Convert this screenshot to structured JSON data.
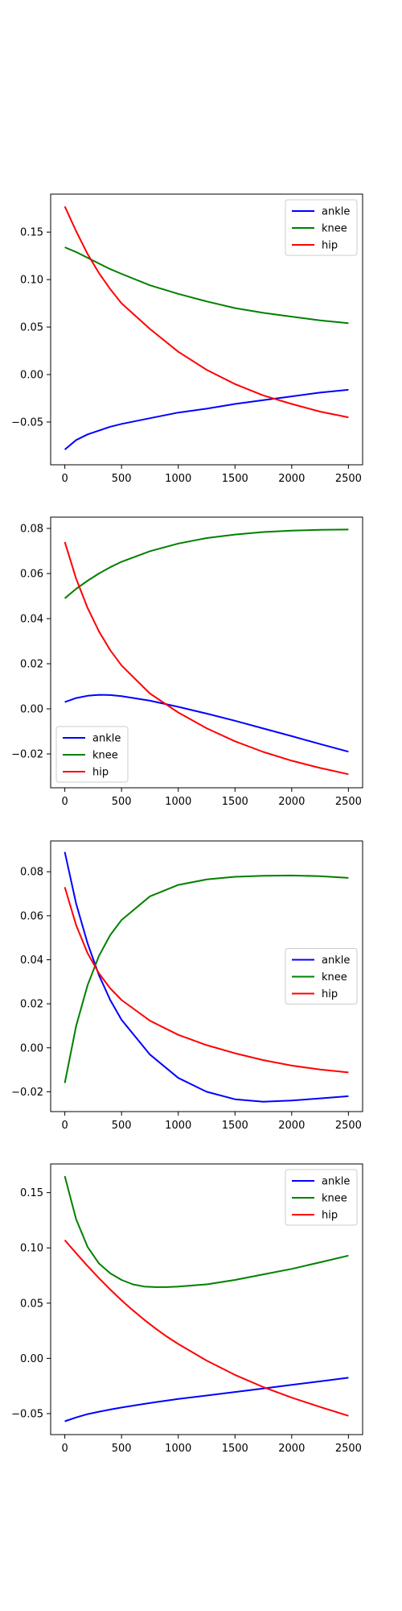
{
  "chart_data": [
    {
      "type": "line",
      "xlim": [
        -125,
        2625
      ],
      "ylim": [
        -0.095,
        0.19
      ],
      "x_ticks": [
        0,
        500,
        1000,
        1500,
        2000,
        2500
      ],
      "y_ticks": [
        -0.05,
        0.0,
        0.05,
        0.1,
        0.15
      ],
      "y_tick_labels": [
        "−0.05",
        "0.00",
        "0.05",
        "0.10",
        "0.15"
      ],
      "legend": "upper right",
      "x": [
        0,
        100,
        200,
        300,
        400,
        500,
        750,
        1000,
        1250,
        1500,
        1750,
        2000,
        2250,
        2500
      ],
      "series": [
        {
          "name": "ankle",
          "color": "#0000ff",
          "values": [
            -0.079,
            -0.069,
            -0.063,
            -0.059,
            -0.055,
            -0.052,
            -0.046,
            -0.04,
            -0.036,
            -0.031,
            -0.027,
            -0.023,
            -0.019,
            -0.016
          ]
        },
        {
          "name": "knee",
          "color": "#008000",
          "values": [
            0.134,
            0.129,
            0.123,
            0.117,
            0.111,
            0.106,
            0.094,
            0.085,
            0.077,
            0.07,
            0.065,
            0.061,
            0.057,
            0.054
          ]
        },
        {
          "name": "hip",
          "color": "#ff0000",
          "values": [
            0.177,
            0.151,
            0.127,
            0.107,
            0.09,
            0.075,
            0.048,
            0.024,
            0.005,
            -0.01,
            -0.022,
            -0.031,
            -0.039,
            -0.045
          ]
        }
      ]
    },
    {
      "type": "line",
      "xlim": [
        -125,
        2625
      ],
      "ylim": [
        -0.035,
        0.085
      ],
      "x_ticks": [
        0,
        500,
        1000,
        1500,
        2000,
        2500
      ],
      "y_ticks": [
        -0.02,
        0.0,
        0.02,
        0.04,
        0.06,
        0.08
      ],
      "y_tick_labels": [
        "−0.02",
        "0.00",
        "0.02",
        "0.04",
        "0.06",
        "0.08"
      ],
      "legend": "lower left",
      "x": [
        0,
        100,
        200,
        300,
        400,
        500,
        750,
        1000,
        1250,
        1500,
        1750,
        2000,
        2250,
        2500
      ],
      "series": [
        {
          "name": "ankle",
          "color": "#0000ff",
          "values": [
            0.003,
            0.0048,
            0.0058,
            0.0062,
            0.0061,
            0.0056,
            0.0036,
            0.0009,
            -0.0021,
            -0.0053,
            -0.0087,
            -0.0121,
            -0.0156,
            -0.019
          ]
        },
        {
          "name": "knee",
          "color": "#008000",
          "values": [
            0.049,
            0.0532,
            0.0568,
            0.06,
            0.0628,
            0.0652,
            0.0699,
            0.0733,
            0.0757,
            0.0773,
            0.0784,
            0.079,
            0.0794,
            0.0795
          ]
        },
        {
          "name": "hip",
          "color": "#ff0000",
          "values": [
            0.074,
            0.0577,
            0.0448,
            0.0344,
            0.026,
            0.0192,
            0.0068,
            -0.0016,
            -0.0086,
            -0.0144,
            -0.0191,
            -0.023,
            -0.0262,
            -0.029
          ]
        }
      ]
    },
    {
      "type": "line",
      "xlim": [
        -125,
        2625
      ],
      "ylim": [
        -0.029,
        0.094
      ],
      "x_ticks": [
        0,
        500,
        1000,
        1500,
        2000,
        2500
      ],
      "y_ticks": [
        -0.02,
        0.0,
        0.02,
        0.04,
        0.06,
        0.08
      ],
      "y_tick_labels": [
        "−0.02",
        "0.00",
        "0.02",
        "0.04",
        "0.06",
        "0.08"
      ],
      "legend": "center right",
      "x": [
        0,
        100,
        200,
        300,
        400,
        500,
        750,
        1000,
        1250,
        1500,
        1750,
        2000,
        2250,
        2500
      ],
      "series": [
        {
          "name": "ankle",
          "color": "#0000ff",
          "values": [
            0.089,
            0.0655,
            0.0475,
            0.0331,
            0.0217,
            0.0127,
            -0.0031,
            -0.0137,
            -0.02,
            -0.0234,
            -0.0245,
            -0.024,
            -0.023,
            -0.022
          ]
        },
        {
          "name": "knee",
          "color": "#008000",
          "values": [
            -0.016,
            0.0099,
            0.0284,
            0.0417,
            0.0512,
            0.0581,
            0.0688,
            0.074,
            0.0765,
            0.0777,
            0.0782,
            0.0783,
            0.078,
            0.0772
          ]
        },
        {
          "name": "hip",
          "color": "#ff0000",
          "values": [
            0.073,
            0.0557,
            0.043,
            0.0339,
            0.027,
            0.0217,
            0.0123,
            0.0059,
            0.0012,
            -0.0025,
            -0.0056,
            -0.0081,
            -0.0099,
            -0.0112
          ]
        }
      ]
    },
    {
      "type": "line",
      "xlim": [
        -125,
        2625
      ],
      "ylim": [
        -0.069,
        0.176
      ],
      "x_ticks": [
        0,
        500,
        1000,
        1500,
        2000,
        2500
      ],
      "y_ticks": [
        -0.05,
        0.0,
        0.05,
        0.1,
        0.15
      ],
      "y_tick_labels": [
        "−0.05",
        "0.00",
        "0.05",
        "0.10",
        "0.15"
      ],
      "legend": "upper right",
      "x": [
        0,
        100,
        200,
        300,
        400,
        500,
        600,
        700,
        800,
        900,
        1000,
        1250,
        1500,
        1750,
        2000,
        2250,
        2500
      ],
      "series": [
        {
          "name": "ankle",
          "color": "#0000ff",
          "values": [
            -0.057,
            -0.0535,
            -0.0505,
            -0.0483,
            -0.0463,
            -0.0445,
            -0.0428,
            -0.0412,
            -0.0397,
            -0.0382,
            -0.0368,
            -0.0336,
            -0.0304,
            -0.0272,
            -0.024,
            -0.0208,
            -0.0175
          ]
        },
        {
          "name": "knee",
          "color": "#008000",
          "values": [
            0.165,
            0.126,
            0.101,
            0.086,
            0.077,
            0.071,
            0.067,
            0.065,
            0.0645,
            0.0645,
            0.065,
            0.067,
            0.071,
            0.076,
            0.081,
            0.087,
            0.093
          ]
        },
        {
          "name": "hip",
          "color": "#ff0000",
          "values": [
            0.107,
            0.0952,
            0.0836,
            0.0727,
            0.0623,
            0.0525,
            0.0435,
            0.035,
            0.027,
            0.0197,
            0.013,
            -0.002,
            -0.015,
            -0.026,
            -0.0355,
            -0.044,
            -0.052
          ]
        }
      ]
    }
  ]
}
